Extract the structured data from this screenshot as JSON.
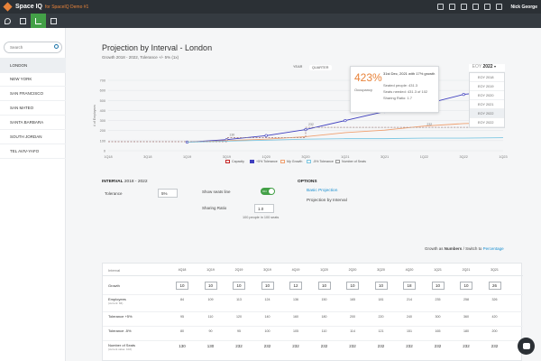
{
  "app": {
    "name": "Space IQ",
    "subtitle": "for SpaceIQ Demo #1",
    "user": "Nick George"
  },
  "top_icons": [
    "report-icon",
    "list-icon",
    "box-icon",
    "map-icon",
    "chart-icon",
    "bars-icon"
  ],
  "toolbar": {
    "icons": [
      "location-icon",
      "floorplan-icon",
      "trend-icon",
      "document-icon"
    ],
    "active_index": 2
  },
  "sidebar": {
    "search_placeholder": "Search",
    "items": [
      "LONDON",
      "NEW YORK",
      "SAN FRANCISCO",
      "SAN MATEO",
      "SANTA BARBARA",
      "SOUTH JORDAN",
      "TEL AVIV-YAFO"
    ],
    "selected_index": 0
  },
  "page": {
    "title": "Projection by Interval - London",
    "subtitle": "Growth 2018 - 2022, Tolerance +/- 5% (1x)",
    "view_toggle": [
      "YEAR",
      "QUARTER"
    ],
    "selected_view": "QUARTER"
  },
  "year_dropdown": {
    "selected_prefix": "EOY",
    "selected_year": "2022",
    "options": [
      "EOY 2018",
      "EOY 2019",
      "EOY 2020",
      "EOY 2021",
      "EOY 2022",
      "EOY 2022"
    ],
    "highlight_index": 4
  },
  "tooltip": {
    "percent": "423%",
    "label": "Occupancy",
    "heading": "31st Dec, 2021 with 17% growth",
    "lines": [
      "Seated people: 431.3",
      "Seats needed: 431.3 of 102",
      "Sharing Ratio: 1.7"
    ]
  },
  "chart_data": {
    "type": "line",
    "ylim": [
      0,
      700
    ],
    "yticks": [
      "700",
      "600",
      "500",
      "400",
      "300",
      "200",
      "100",
      "0"
    ],
    "ylabel": "# of Employees",
    "categories": [
      "1Q18",
      "3Q18",
      "1Q19",
      "3Q19",
      "1Q20",
      "3Q20",
      "1Q21",
      "3Q21",
      "1Q22",
      "3Q22",
      "1Q23"
    ],
    "series": [
      {
        "name": "Capacity",
        "color": "#c62828",
        "dashed": true,
        "values": [
          90,
          90,
          90,
          130,
          130,
          232,
          232,
          232,
          232,
          232,
          232
        ]
      },
      {
        "name": "+5% Tolerance",
        "color": "#3f3fbf",
        "values": [
          null,
          null,
          85,
          110,
          150,
          210,
          300,
          390,
          460,
          560,
          600
        ]
      },
      {
        "name": "My Growth",
        "color": "#f0a070",
        "values": [
          null,
          null,
          85,
          100,
          115,
          140,
          180,
          205,
          245,
          270,
          280
        ]
      },
      {
        "name": "-5% Tolerance",
        "color": "#7ec8e3",
        "values": [
          null,
          null,
          85,
          95,
          105,
          115,
          120,
          120,
          125,
          125,
          130
        ]
      },
      {
        "name": "Number of Seats",
        "color": "#999999",
        "dashed": true,
        "values": [
          90,
          90,
          90,
          130,
          130,
          232,
          232,
          232,
          232,
          232,
          232
        ]
      }
    ],
    "annotations": [
      "130",
      "232",
      "232"
    ],
    "legend_position": "bottom"
  },
  "interval": {
    "title": "INTERVAL",
    "range": "2018 - 2022",
    "tolerance_label": "Tolerance",
    "tolerance_value": "5%",
    "show_seats_label": "Show seats line",
    "show_seats_state": "ON",
    "sharing_ratio_label": "Sharing Ratio",
    "sharing_ratio_value": "1.0",
    "note": "100 people in 100 seats"
  },
  "options": {
    "title": "OPTIONS",
    "items": [
      "Basic Projection",
      "Projection by Interval"
    ],
    "active_index": 0
  },
  "growth_switch": {
    "prefix": "Growth as",
    "current": "Numbers",
    "middle": "/ Switch to",
    "link": "Percentage"
  },
  "table": {
    "header_label": "Interval",
    "columns": [
      "4Q18",
      "1Q19",
      "2Q19",
      "3Q19",
      "4Q19",
      "1Q20",
      "2Q20",
      "3Q20",
      "4Q20",
      "1Q21",
      "2Q21",
      "3Q21"
    ],
    "growth_label": "Growth",
    "growth": [
      "10",
      "10",
      "10",
      "10",
      "12",
      "10",
      "10",
      "10",
      "18",
      "10",
      "10",
      "26"
    ],
    "rows": [
      {
        "label": "Employees",
        "sub": "(current: 84)",
        "values": [
          "84",
          "109",
          "113",
          "124",
          "136",
          "150",
          "165",
          "181",
          "214",
          "235",
          "258",
          "326"
        ]
      },
      {
        "label": "Tolerance +5%",
        "sub": "",
        "values": [
          "95",
          "110",
          "120",
          "140",
          "160",
          "180",
          "200",
          "220",
          "240",
          "300",
          "360",
          "420"
        ]
      },
      {
        "label": "Tolerance -5%",
        "sub": "",
        "values": [
          "80",
          "90",
          "95",
          "100",
          "105",
          "110",
          "114",
          "121",
          "151",
          "165",
          "180",
          "200"
        ]
      },
      {
        "label": "Number of Seats",
        "sub": "(current value: 102)",
        "values": [
          "130",
          "130",
          "232",
          "232",
          "232",
          "232",
          "232",
          "232",
          "232",
          "232",
          "232",
          "232"
        ]
      }
    ]
  },
  "colors": {
    "accent": "#43a047",
    "brand": "#e8833a",
    "link": "#1a8fd0",
    "topbar": "#2b3035"
  }
}
